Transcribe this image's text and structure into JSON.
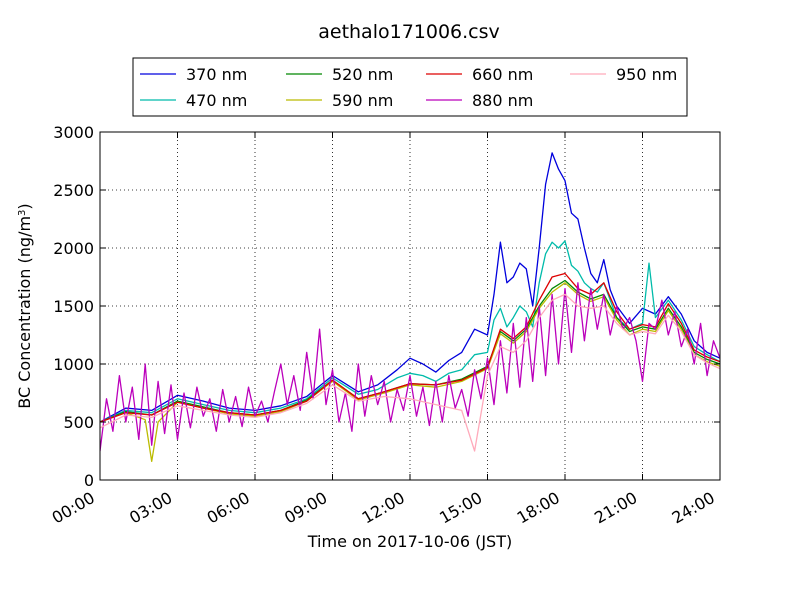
{
  "chart_data": {
    "type": "line",
    "title": "aethalo171006.csv",
    "xlabel": "Time on 2017-10-06 (JST)",
    "ylabel": "BC Concentration (ng/m",
    "ylabel_superscript": "3",
    "ylabel_close": ")",
    "xlim": [
      "00:00",
      "24:00"
    ],
    "ylim": [
      0,
      3000
    ],
    "x_ticks": [
      "00:00",
      "03:00",
      "06:00",
      "09:00",
      "12:00",
      "15:00",
      "18:00",
      "21:00",
      "24:00"
    ],
    "y_ticks": [
      "0",
      "500",
      "1000",
      "1500",
      "2000",
      "2500",
      "3000"
    ],
    "grid": true,
    "grid_style": "dotted",
    "legend": {
      "placement": "top",
      "columns": 4
    },
    "series": [
      {
        "name": "370 nm",
        "color": "#0000dd",
        "x": [
          "00:00",
          "01:00",
          "02:00",
          "03:00",
          "04:00",
          "05:00",
          "06:00",
          "07:00",
          "08:00",
          "09:00",
          "10:00",
          "10:45",
          "11:30",
          "12:00",
          "12:30",
          "13:00",
          "13:30",
          "14:00",
          "14:30",
          "15:00",
          "15:15",
          "15:30",
          "15:45",
          "16:00",
          "16:15",
          "16:30",
          "16:45",
          "17:00",
          "17:15",
          "17:30",
          "17:45",
          "18:00",
          "18:15",
          "18:30",
          "18:45",
          "19:00",
          "19:15",
          "19:30",
          "19:45",
          "20:00",
          "20:30",
          "21:00",
          "21:30",
          "22:00",
          "22:30",
          "23:00",
          "23:30",
          "24:00"
        ],
        "y": [
          500,
          620,
          600,
          730,
          680,
          620,
          600,
          640,
          720,
          900,
          760,
          820,
          950,
          1050,
          1000,
          930,
          1030,
          1100,
          1300,
          1250,
          1600,
          2050,
          1700,
          1750,
          1870,
          1820,
          1500,
          2000,
          2550,
          2820,
          2680,
          2580,
          2300,
          2250,
          2000,
          1780,
          1700,
          1900,
          1640,
          1500,
          1350,
          1480,
          1430,
          1580,
          1430,
          1200,
          1100,
          1050
        ]
      },
      {
        "name": "470 nm",
        "color": "#00bbaa",
        "x": [
          "00:00",
          "01:00",
          "02:00",
          "03:00",
          "04:00",
          "05:00",
          "06:00",
          "07:00",
          "08:00",
          "09:00",
          "10:00",
          "10:45",
          "11:30",
          "12:00",
          "12:30",
          "13:00",
          "13:30",
          "14:00",
          "14:30",
          "15:00",
          "15:15",
          "15:30",
          "15:45",
          "16:00",
          "16:15",
          "16:30",
          "16:45",
          "17:00",
          "17:15",
          "17:30",
          "17:45",
          "18:00",
          "18:15",
          "18:30",
          "18:45",
          "19:00",
          "19:15",
          "19:30",
          "19:45",
          "20:00",
          "20:30",
          "21:00",
          "21:15",
          "21:30",
          "22:00",
          "22:30",
          "23:00",
          "23:30",
          "24:00"
        ],
        "y": [
          500,
          600,
          580,
          700,
          650,
          600,
          580,
          620,
          700,
          880,
          740,
          780,
          880,
          920,
          900,
          850,
          920,
          950,
          1080,
          1100,
          1380,
          1480,
          1320,
          1400,
          1500,
          1450,
          1320,
          1700,
          1950,
          2050,
          2000,
          2060,
          1850,
          1800,
          1700,
          1650,
          1620,
          1700,
          1550,
          1400,
          1300,
          1350,
          1870,
          1400,
          1550,
          1380,
          1150,
          1080,
          1020
        ]
      },
      {
        "name": "520 nm",
        "color": "#008800",
        "x": [
          "00:00",
          "01:00",
          "02:00",
          "03:00",
          "04:00",
          "05:00",
          "06:00",
          "07:00",
          "08:00",
          "09:00",
          "10:00",
          "11:00",
          "12:00",
          "13:00",
          "14:00",
          "15:00",
          "15:30",
          "16:00",
          "16:30",
          "17:00",
          "17:30",
          "18:00",
          "18:30",
          "19:00",
          "19:30",
          "20:00",
          "20:30",
          "21:00",
          "21:30",
          "22:00",
          "22:30",
          "23:00",
          "23:30",
          "24:00"
        ],
        "y": [
          500,
          590,
          560,
          680,
          630,
          580,
          560,
          600,
          690,
          860,
          700,
          760,
          830,
          820,
          870,
          980,
          1280,
          1200,
          1300,
          1500,
          1650,
          1720,
          1620,
          1560,
          1600,
          1400,
          1280,
          1320,
          1300,
          1480,
          1320,
          1100,
          1040,
          1000
        ]
      },
      {
        "name": "590 nm",
        "color": "#bbbb00",
        "x": [
          "00:00",
          "01:00",
          "01:45",
          "02:00",
          "02:15",
          "03:00",
          "04:00",
          "05:00",
          "06:00",
          "07:00",
          "08:00",
          "09:00",
          "10:00",
          "11:00",
          "12:00",
          "13:00",
          "14:00",
          "15:00",
          "15:30",
          "16:00",
          "16:30",
          "17:00",
          "17:30",
          "18:00",
          "18:30",
          "19:00",
          "19:30",
          "20:00",
          "20:30",
          "21:00",
          "21:30",
          "22:00",
          "22:30",
          "23:00",
          "23:30",
          "24:00"
        ],
        "y": [
          500,
          580,
          520,
          160,
          500,
          670,
          620,
          570,
          550,
          590,
          680,
          850,
          690,
          750,
          820,
          800,
          850,
          960,
          1260,
          1180,
          1280,
          1480,
          1620,
          1700,
          1600,
          1540,
          1580,
          1380,
          1250,
          1300,
          1280,
          1460,
          1300,
          1080,
          1020,
          980
        ]
      },
      {
        "name": "660 nm",
        "color": "#dd0000",
        "x": [
          "00:00",
          "01:00",
          "02:00",
          "03:00",
          "04:00",
          "05:00",
          "06:00",
          "07:00",
          "08:00",
          "09:00",
          "10:00",
          "11:00",
          "12:00",
          "13:00",
          "14:00",
          "15:00",
          "15:30",
          "16:00",
          "16:30",
          "17:00",
          "17:30",
          "18:00",
          "18:30",
          "19:00",
          "19:30",
          "20:00",
          "20:30",
          "21:00",
          "21:30",
          "22:00",
          "22:30",
          "23:00",
          "23:30",
          "24:00"
        ],
        "y": [
          500,
          580,
          560,
          670,
          620,
          580,
          560,
          600,
          680,
          860,
          700,
          760,
          830,
          820,
          860,
          970,
          1300,
          1220,
          1320,
          1550,
          1750,
          1780,
          1650,
          1600,
          1700,
          1450,
          1300,
          1340,
          1320,
          1520,
          1350,
          1120,
          1060,
          1020
        ]
      },
      {
        "name": "880 nm",
        "color": "#bb00bb",
        "x": [
          "00:00",
          "00:15",
          "00:30",
          "00:45",
          "01:00",
          "01:15",
          "01:30",
          "01:45",
          "02:00",
          "02:15",
          "02:30",
          "02:45",
          "03:00",
          "03:15",
          "03:30",
          "03:45",
          "04:00",
          "04:15",
          "04:30",
          "04:45",
          "05:00",
          "05:15",
          "05:30",
          "05:45",
          "06:00",
          "06:15",
          "06:30",
          "06:45",
          "07:00",
          "07:15",
          "07:30",
          "07:45",
          "08:00",
          "08:15",
          "08:30",
          "08:45",
          "09:00",
          "09:15",
          "09:30",
          "09:45",
          "10:00",
          "10:15",
          "10:30",
          "10:45",
          "11:00",
          "11:15",
          "11:30",
          "11:45",
          "12:00",
          "12:15",
          "12:30",
          "12:45",
          "13:00",
          "13:15",
          "13:30",
          "13:45",
          "14:00",
          "14:15",
          "14:30",
          "14:45",
          "15:00",
          "15:15",
          "15:30",
          "15:45",
          "16:00",
          "16:15",
          "16:30",
          "16:45",
          "17:00",
          "17:15",
          "17:30",
          "17:45",
          "18:00",
          "18:15",
          "18:30",
          "18:45",
          "19:00",
          "19:15",
          "19:30",
          "19:45",
          "20:00",
          "20:15",
          "20:30",
          "20:45",
          "21:00",
          "21:15",
          "21:30",
          "21:45",
          "22:00",
          "22:15",
          "22:30",
          "22:45",
          "23:00",
          "23:15",
          "23:30",
          "23:45",
          "24:00"
        ],
        "y": [
          250,
          700,
          420,
          900,
          500,
          800,
          350,
          1000,
          300,
          850,
          400,
          820,
          350,
          750,
          450,
          800,
          550,
          700,
          420,
          780,
          500,
          720,
          460,
          800,
          550,
          680,
          500,
          760,
          1000,
          650,
          900,
          600,
          1100,
          700,
          1300,
          650,
          950,
          500,
          750,
          420,
          1000,
          550,
          900,
          650,
          850,
          500,
          780,
          600,
          900,
          550,
          800,
          470,
          850,
          500,
          900,
          620,
          780,
          550,
          950,
          700,
          1050,
          650,
          1200,
          750,
          1350,
          800,
          1400,
          850,
          1500,
          900,
          1600,
          1000,
          1650,
          1100,
          1700,
          1200,
          1650,
          1300,
          1600,
          1250,
          1500,
          1300,
          1400,
          1200,
          850,
          1350,
          1300,
          1550,
          1250,
          1450,
          1150,
          1300,
          1000,
          1350,
          900,
          1200,
          1050
        ]
      },
      {
        "name": "950 nm",
        "color": "#ffaabb",
        "x": [
          "00:00",
          "01:00",
          "02:00",
          "03:00",
          "04:00",
          "05:00",
          "06:00",
          "07:00",
          "08:00",
          "09:00",
          "10:00",
          "11:00",
          "12:00",
          "13:00",
          "14:00",
          "14:30",
          "15:00",
          "15:30",
          "16:00",
          "16:30",
          "17:00",
          "17:30",
          "18:00",
          "18:30",
          "19:00",
          "19:30",
          "20:00",
          "20:30",
          "21:00",
          "21:30",
          "22:00",
          "22:30",
          "23:00",
          "23:30",
          "24:00"
        ],
        "y": [
          450,
          560,
          540,
          640,
          600,
          560,
          540,
          580,
          660,
          820,
          680,
          720,
          700,
          650,
          600,
          250,
          900,
          1150,
          1100,
          1200,
          1400,
          1550,
          1600,
          1500,
          1480,
          1500,
          1350,
          1250,
          1280,
          1260,
          1420,
          1280,
          1080,
          1010,
          960
        ]
      }
    ]
  }
}
